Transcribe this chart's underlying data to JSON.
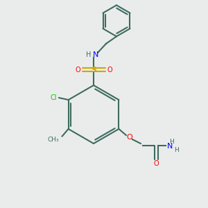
{
  "bg_color": "#eaecec",
  "bond_color": "#3d6b5e",
  "bond_lw": 1.5,
  "atom_colors": {
    "N": "#0000ff",
    "O": "#ff0000",
    "S": "#ccaa00",
    "Cl": "#00cc00",
    "C": "#3d6b5e",
    "H": "#3d6b5e"
  }
}
